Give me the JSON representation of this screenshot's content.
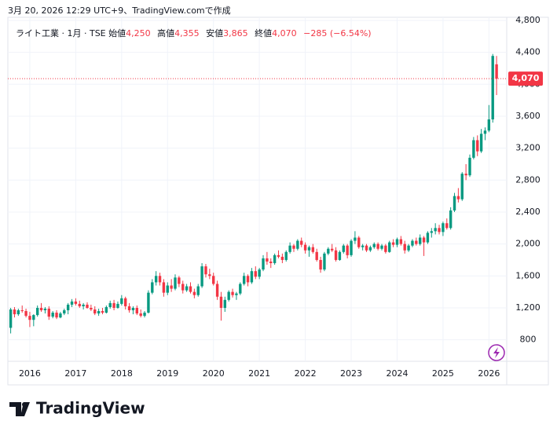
{
  "header": {
    "caption": "3月 20, 2026 12:29 UTC+9、TradingView.comで作成"
  },
  "legend": {
    "symbol": "ライト工業 · 1月 · TSE",
    "open_label": "始値",
    "open": "4,250",
    "high_label": "高値",
    "high": "4,355",
    "low_label": "安値",
    "low": "3,865",
    "close_label": "終値",
    "close": "4,070",
    "change": "−285 (−6.54%)"
  },
  "chart_data": {
    "type": "candlestick",
    "categories": [
      null,
      null,
      null,
      null,
      null,
      "2016",
      null,
      null,
      null,
      null,
      null,
      null,
      null,
      null,
      null,
      null,
      null,
      "2017",
      null,
      null,
      null,
      null,
      null,
      null,
      null,
      null,
      null,
      null,
      null,
      "2018",
      null,
      null,
      null,
      null,
      null,
      null,
      null,
      null,
      null,
      null,
      null,
      "2019",
      null,
      null,
      null,
      null,
      null,
      null,
      null,
      null,
      null,
      null,
      null,
      "2020",
      null,
      null,
      null,
      null,
      null,
      null,
      null,
      null,
      null,
      null,
      null,
      "2021",
      null,
      null,
      null,
      null,
      null,
      null,
      null,
      null,
      null,
      null,
      null,
      "2022",
      null,
      null,
      null,
      null,
      null,
      null,
      null,
      null,
      null,
      null,
      null,
      "2023",
      null,
      null,
      null,
      null,
      null,
      null,
      null,
      null,
      null,
      null,
      null,
      "2024",
      null,
      null,
      null,
      null,
      null,
      null,
      null,
      null,
      null,
      null,
      null,
      "2025",
      null,
      null,
      null,
      null,
      null,
      null,
      null,
      null,
      null,
      null,
      null,
      "2026",
      null,
      null
    ],
    "candles": [
      {
        "open": 950,
        "high": 1200,
        "low": 880,
        "close": 1180
      },
      {
        "open": 1180,
        "high": 1210,
        "low": 1080,
        "close": 1120
      },
      {
        "open": 1120,
        "high": 1190,
        "low": 1100,
        "close": 1170
      },
      {
        "open": 1170,
        "high": 1230,
        "low": 1140,
        "close": 1160
      },
      {
        "open": 1160,
        "high": 1190,
        "low": 1080,
        "close": 1100
      },
      {
        "open": 1100,
        "high": 1150,
        "low": 960,
        "close": 1050
      },
      {
        "open": 1050,
        "high": 1120,
        "low": 970,
        "close": 1110
      },
      {
        "open": 1110,
        "high": 1230,
        "low": 1090,
        "close": 1200
      },
      {
        "open": 1200,
        "high": 1260,
        "low": 1150,
        "close": 1170
      },
      {
        "open": 1170,
        "high": 1210,
        "low": 1130,
        "close": 1190
      },
      {
        "open": 1190,
        "high": 1220,
        "low": 1050,
        "close": 1090
      },
      {
        "open": 1090,
        "high": 1160,
        "low": 1070,
        "close": 1140
      },
      {
        "open": 1140,
        "high": 1170,
        "low": 1060,
        "close": 1080
      },
      {
        "open": 1080,
        "high": 1150,
        "low": 1070,
        "close": 1130
      },
      {
        "open": 1130,
        "high": 1190,
        "low": 1110,
        "close": 1170
      },
      {
        "open": 1170,
        "high": 1260,
        "low": 1120,
        "close": 1240
      },
      {
        "open": 1240,
        "high": 1310,
        "low": 1210,
        "close": 1280
      },
      {
        "open": 1280,
        "high": 1320,
        "low": 1230,
        "close": 1250
      },
      {
        "open": 1250,
        "high": 1290,
        "low": 1200,
        "close": 1220
      },
      {
        "open": 1220,
        "high": 1260,
        "low": 1180,
        "close": 1240
      },
      {
        "open": 1240,
        "high": 1270,
        "low": 1190,
        "close": 1200
      },
      {
        "open": 1200,
        "high": 1240,
        "low": 1160,
        "close": 1180
      },
      {
        "open": 1180,
        "high": 1220,
        "low": 1110,
        "close": 1130
      },
      {
        "open": 1130,
        "high": 1190,
        "low": 1100,
        "close": 1160
      },
      {
        "open": 1160,
        "high": 1200,
        "low": 1120,
        "close": 1140
      },
      {
        "open": 1140,
        "high": 1230,
        "low": 1130,
        "close": 1210
      },
      {
        "open": 1210,
        "high": 1290,
        "low": 1190,
        "close": 1260
      },
      {
        "open": 1260,
        "high": 1300,
        "low": 1170,
        "close": 1200
      },
      {
        "open": 1200,
        "high": 1280,
        "low": 1190,
        "close": 1250
      },
      {
        "open": 1250,
        "high": 1360,
        "low": 1230,
        "close": 1320
      },
      {
        "open": 1320,
        "high": 1340,
        "low": 1180,
        "close": 1220
      },
      {
        "open": 1220,
        "high": 1260,
        "low": 1140,
        "close": 1170
      },
      {
        "open": 1170,
        "high": 1220,
        "low": 1120,
        "close": 1200
      },
      {
        "open": 1200,
        "high": 1230,
        "low": 1110,
        "close": 1130
      },
      {
        "open": 1130,
        "high": 1180,
        "low": 1080,
        "close": 1100
      },
      {
        "open": 1100,
        "high": 1160,
        "low": 1080,
        "close": 1140
      },
      {
        "open": 1140,
        "high": 1420,
        "low": 1130,
        "close": 1390
      },
      {
        "open": 1390,
        "high": 1560,
        "low": 1370,
        "close": 1520
      },
      {
        "open": 1520,
        "high": 1660,
        "low": 1480,
        "close": 1600
      },
      {
        "open": 1600,
        "high": 1640,
        "low": 1480,
        "close": 1520
      },
      {
        "open": 1520,
        "high": 1560,
        "low": 1340,
        "close": 1390
      },
      {
        "open": 1390,
        "high": 1520,
        "low": 1360,
        "close": 1480
      },
      {
        "open": 1480,
        "high": 1560,
        "low": 1400,
        "close": 1440
      },
      {
        "open": 1440,
        "high": 1620,
        "low": 1420,
        "close": 1580
      },
      {
        "open": 1580,
        "high": 1600,
        "low": 1460,
        "close": 1500
      },
      {
        "open": 1500,
        "high": 1540,
        "low": 1380,
        "close": 1420
      },
      {
        "open": 1420,
        "high": 1500,
        "low": 1400,
        "close": 1470
      },
      {
        "open": 1470,
        "high": 1520,
        "low": 1380,
        "close": 1400
      },
      {
        "open": 1400,
        "high": 1440,
        "low": 1320,
        "close": 1360
      },
      {
        "open": 1360,
        "high": 1500,
        "low": 1340,
        "close": 1470
      },
      {
        "open": 1470,
        "high": 1760,
        "low": 1450,
        "close": 1720
      },
      {
        "open": 1720,
        "high": 1750,
        "low": 1580,
        "close": 1620
      },
      {
        "open": 1620,
        "high": 1690,
        "low": 1560,
        "close": 1600
      },
      {
        "open": 1600,
        "high": 1640,
        "low": 1480,
        "close": 1500
      },
      {
        "open": 1500,
        "high": 1540,
        "low": 1300,
        "close": 1340
      },
      {
        "open": 1340,
        "high": 1400,
        "low": 1040,
        "close": 1200
      },
      {
        "open": 1200,
        "high": 1340,
        "low": 1150,
        "close": 1300
      },
      {
        "open": 1300,
        "high": 1420,
        "low": 1280,
        "close": 1400
      },
      {
        "open": 1400,
        "high": 1440,
        "low": 1330,
        "close": 1360
      },
      {
        "open": 1360,
        "high": 1400,
        "low": 1300,
        "close": 1380
      },
      {
        "open": 1380,
        "high": 1520,
        "low": 1360,
        "close": 1500
      },
      {
        "open": 1500,
        "high": 1640,
        "low": 1480,
        "close": 1600
      },
      {
        "open": 1600,
        "high": 1620,
        "low": 1470,
        "close": 1520
      },
      {
        "open": 1520,
        "high": 1700,
        "low": 1500,
        "close": 1660
      },
      {
        "open": 1660,
        "high": 1720,
        "low": 1560,
        "close": 1590
      },
      {
        "open": 1590,
        "high": 1700,
        "low": 1560,
        "close": 1680
      },
      {
        "open": 1680,
        "high": 1860,
        "low": 1660,
        "close": 1820
      },
      {
        "open": 1820,
        "high": 1900,
        "low": 1740,
        "close": 1780
      },
      {
        "open": 1780,
        "high": 1820,
        "low": 1700,
        "close": 1760
      },
      {
        "open": 1760,
        "high": 1880,
        "low": 1740,
        "close": 1860
      },
      {
        "open": 1860,
        "high": 1920,
        "low": 1820,
        "close": 1840
      },
      {
        "open": 1840,
        "high": 1880,
        "low": 1760,
        "close": 1800
      },
      {
        "open": 1800,
        "high": 1920,
        "low": 1780,
        "close": 1900
      },
      {
        "open": 1900,
        "high": 2020,
        "low": 1880,
        "close": 1980
      },
      {
        "open": 1980,
        "high": 2000,
        "low": 1900,
        "close": 1940
      },
      {
        "open": 1940,
        "high": 2060,
        "low": 1920,
        "close": 2040
      },
      {
        "open": 2040,
        "high": 2080,
        "low": 1960,
        "close": 1990
      },
      {
        "open": 1990,
        "high": 2020,
        "low": 1880,
        "close": 1920
      },
      {
        "open": 1920,
        "high": 1980,
        "low": 1840,
        "close": 1960
      },
      {
        "open": 1960,
        "high": 2000,
        "low": 1880,
        "close": 1900
      },
      {
        "open": 1900,
        "high": 1940,
        "low": 1780,
        "close": 1800
      },
      {
        "open": 1800,
        "high": 1840,
        "low": 1640,
        "close": 1680
      },
      {
        "open": 1680,
        "high": 1900,
        "low": 1660,
        "close": 1880
      },
      {
        "open": 1880,
        "high": 1960,
        "low": 1860,
        "close": 1940
      },
      {
        "open": 1940,
        "high": 2000,
        "low": 1900,
        "close": 1920
      },
      {
        "open": 1920,
        "high": 1960,
        "low": 1780,
        "close": 1800
      },
      {
        "open": 1800,
        "high": 1920,
        "low": 1790,
        "close": 1900
      },
      {
        "open": 1900,
        "high": 2000,
        "low": 1880,
        "close": 1980
      },
      {
        "open": 1980,
        "high": 2000,
        "low": 1820,
        "close": 1860
      },
      {
        "open": 1860,
        "high": 2060,
        "low": 1840,
        "close": 2040
      },
      {
        "open": 2040,
        "high": 2160,
        "low": 2000,
        "close": 2080
      },
      {
        "open": 2080,
        "high": 2100,
        "low": 1940,
        "close": 1960
      },
      {
        "open": 1960,
        "high": 2000,
        "low": 1920,
        "close": 1980
      },
      {
        "open": 1980,
        "high": 2000,
        "low": 1900,
        "close": 1920
      },
      {
        "open": 1920,
        "high": 1980,
        "low": 1900,
        "close": 1960
      },
      {
        "open": 1960,
        "high": 2020,
        "low": 1940,
        "close": 2000
      },
      {
        "open": 2000,
        "high": 2020,
        "low": 1920,
        "close": 1940
      },
      {
        "open": 1940,
        "high": 2000,
        "low": 1920,
        "close": 1980
      },
      {
        "open": 1980,
        "high": 2000,
        "low": 1880,
        "close": 1900
      },
      {
        "open": 1900,
        "high": 2040,
        "low": 1890,
        "close": 2020
      },
      {
        "open": 2020,
        "high": 2060,
        "low": 1960,
        "close": 1990
      },
      {
        "open": 1990,
        "high": 2080,
        "low": 1960,
        "close": 2060
      },
      {
        "open": 2060,
        "high": 2100,
        "low": 1980,
        "close": 2000
      },
      {
        "open": 2000,
        "high": 2040,
        "low": 1880,
        "close": 1920
      },
      {
        "open": 1920,
        "high": 2000,
        "low": 1900,
        "close": 1980
      },
      {
        "open": 1980,
        "high": 2060,
        "low": 1960,
        "close": 2040
      },
      {
        "open": 2040,
        "high": 2080,
        "low": 1980,
        "close": 2000
      },
      {
        "open": 2000,
        "high": 2120,
        "low": 1980,
        "close": 2080
      },
      {
        "open": 2080,
        "high": 2100,
        "low": 1850,
        "close": 2020
      },
      {
        "open": 2020,
        "high": 2160,
        "low": 2000,
        "close": 2140
      },
      {
        "open": 2140,
        "high": 2200,
        "low": 2080,
        "close": 2160
      },
      {
        "open": 2160,
        "high": 2260,
        "low": 2120,
        "close": 2200
      },
      {
        "open": 2200,
        "high": 2240,
        "low": 2120,
        "close": 2150
      },
      {
        "open": 2150,
        "high": 2280,
        "low": 2100,
        "close": 2260
      },
      {
        "open": 2260,
        "high": 2320,
        "low": 2180,
        "close": 2200
      },
      {
        "open": 2200,
        "high": 2460,
        "low": 2180,
        "close": 2420
      },
      {
        "open": 2420,
        "high": 2640,
        "low": 2400,
        "close": 2600
      },
      {
        "open": 2600,
        "high": 2700,
        "low": 2520,
        "close": 2560
      },
      {
        "open": 2560,
        "high": 2900,
        "low": 2540,
        "close": 2880
      },
      {
        "open": 2880,
        "high": 3000,
        "low": 2800,
        "close": 2860
      },
      {
        "open": 2860,
        "high": 3120,
        "low": 2840,
        "close": 3080
      },
      {
        "open": 3080,
        "high": 3340,
        "low": 3060,
        "close": 3300
      },
      {
        "open": 3300,
        "high": 3360,
        "low": 3100,
        "close": 3160
      },
      {
        "open": 3160,
        "high": 3440,
        "low": 3140,
        "close": 3380
      },
      {
        "open": 3380,
        "high": 3460,
        "low": 3300,
        "close": 3420
      },
      {
        "open": 3420,
        "high": 3740,
        "low": 3400,
        "close": 3560
      },
      {
        "open": 3560,
        "high": 4380,
        "low": 3520,
        "close": 4355
      },
      {
        "open": 4250,
        "high": 4355,
        "low": 3865,
        "close": 4070
      }
    ],
    "up_color": "#089981",
    "down_color": "#f23645",
    "ylim": [
      580,
      4780
    ],
    "yticks": [
      800,
      {
        "value": 1200,
        "label": "1,200"
      },
      {
        "value": 1600,
        "label": "1,600"
      },
      {
        "value": 2000,
        "label": "2,000"
      },
      {
        "value": 2400,
        "label": "2,400"
      },
      {
        "value": 2800,
        "label": "2,800"
      },
      {
        "value": 3200,
        "label": "3,200"
      },
      {
        "value": 3600,
        "label": "3,600"
      },
      {
        "value": 4000,
        "label": "4,000"
      },
      {
        "value": 4400,
        "label": "4,400"
      },
      {
        "value": 4800,
        "label": "4,800"
      }
    ],
    "grid": true,
    "last_price": {
      "value": 4070,
      "label": "4,070"
    }
  },
  "footer": {
    "logo": "TradingView"
  }
}
